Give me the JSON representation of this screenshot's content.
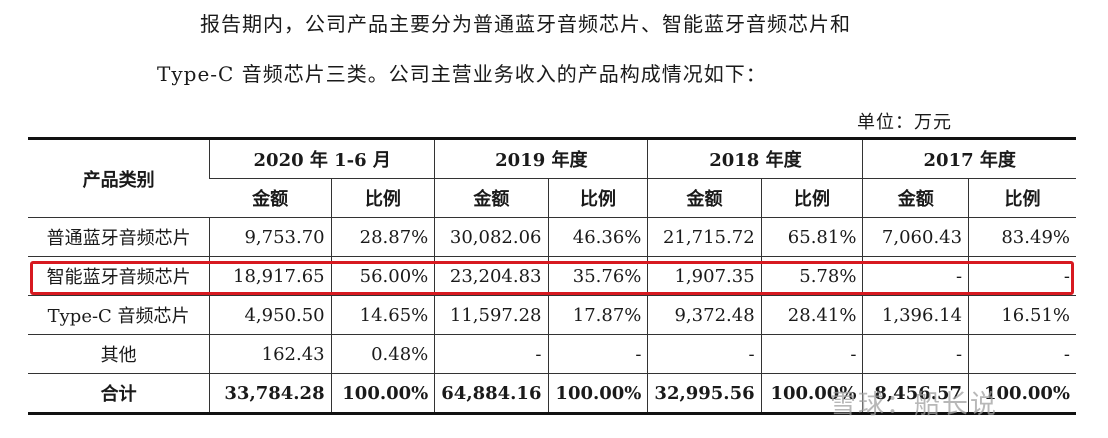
{
  "intro": {
    "line1": "报告期内，公司产品主要分为普通蓝牙音频芯片、智能蓝牙音频芯片和",
    "line2": "Type-C 音频芯片三类。公司主营业务收入的产品构成情况如下："
  },
  "unit_label": "单位：万元",
  "table": {
    "category_header": "产品类别",
    "periods": [
      "2020 年 1-6 月",
      "2019 年度",
      "2018 年度",
      "2017 年度"
    ],
    "sub_headers": {
      "amount": "金额",
      "ratio": "比例"
    },
    "rows": [
      {
        "category": "普通蓝牙音频芯片",
        "cells": [
          "9,753.70",
          "28.87%",
          "30,082.06",
          "46.36%",
          "21,715.72",
          "65.81%",
          "7,060.43",
          "83.49%"
        ]
      },
      {
        "category": "智能蓝牙音频芯片",
        "cells": [
          "18,917.65",
          "56.00%",
          "23,204.83",
          "35.76%",
          "1,907.35",
          "5.78%",
          "-",
          "-"
        ]
      },
      {
        "category": "Type-C 音频芯片",
        "cells": [
          "4,950.50",
          "14.65%",
          "11,597.28",
          "17.87%",
          "9,372.48",
          "28.41%",
          "1,396.14",
          "16.51%"
        ]
      },
      {
        "category": "其他",
        "cells": [
          "162.43",
          "0.48%",
          "-",
          "-",
          "-",
          "-",
          "-",
          "-"
        ]
      }
    ],
    "total": {
      "category": "合计",
      "cells": [
        "33,784.28",
        "100.00%",
        "64,884.16",
        "100.00%",
        "32,995.56",
        "100.00%",
        "8,456.57",
        "100.00%"
      ]
    }
  },
  "highlight_color": "#d71920",
  "watermark": "雪球：船长说"
}
